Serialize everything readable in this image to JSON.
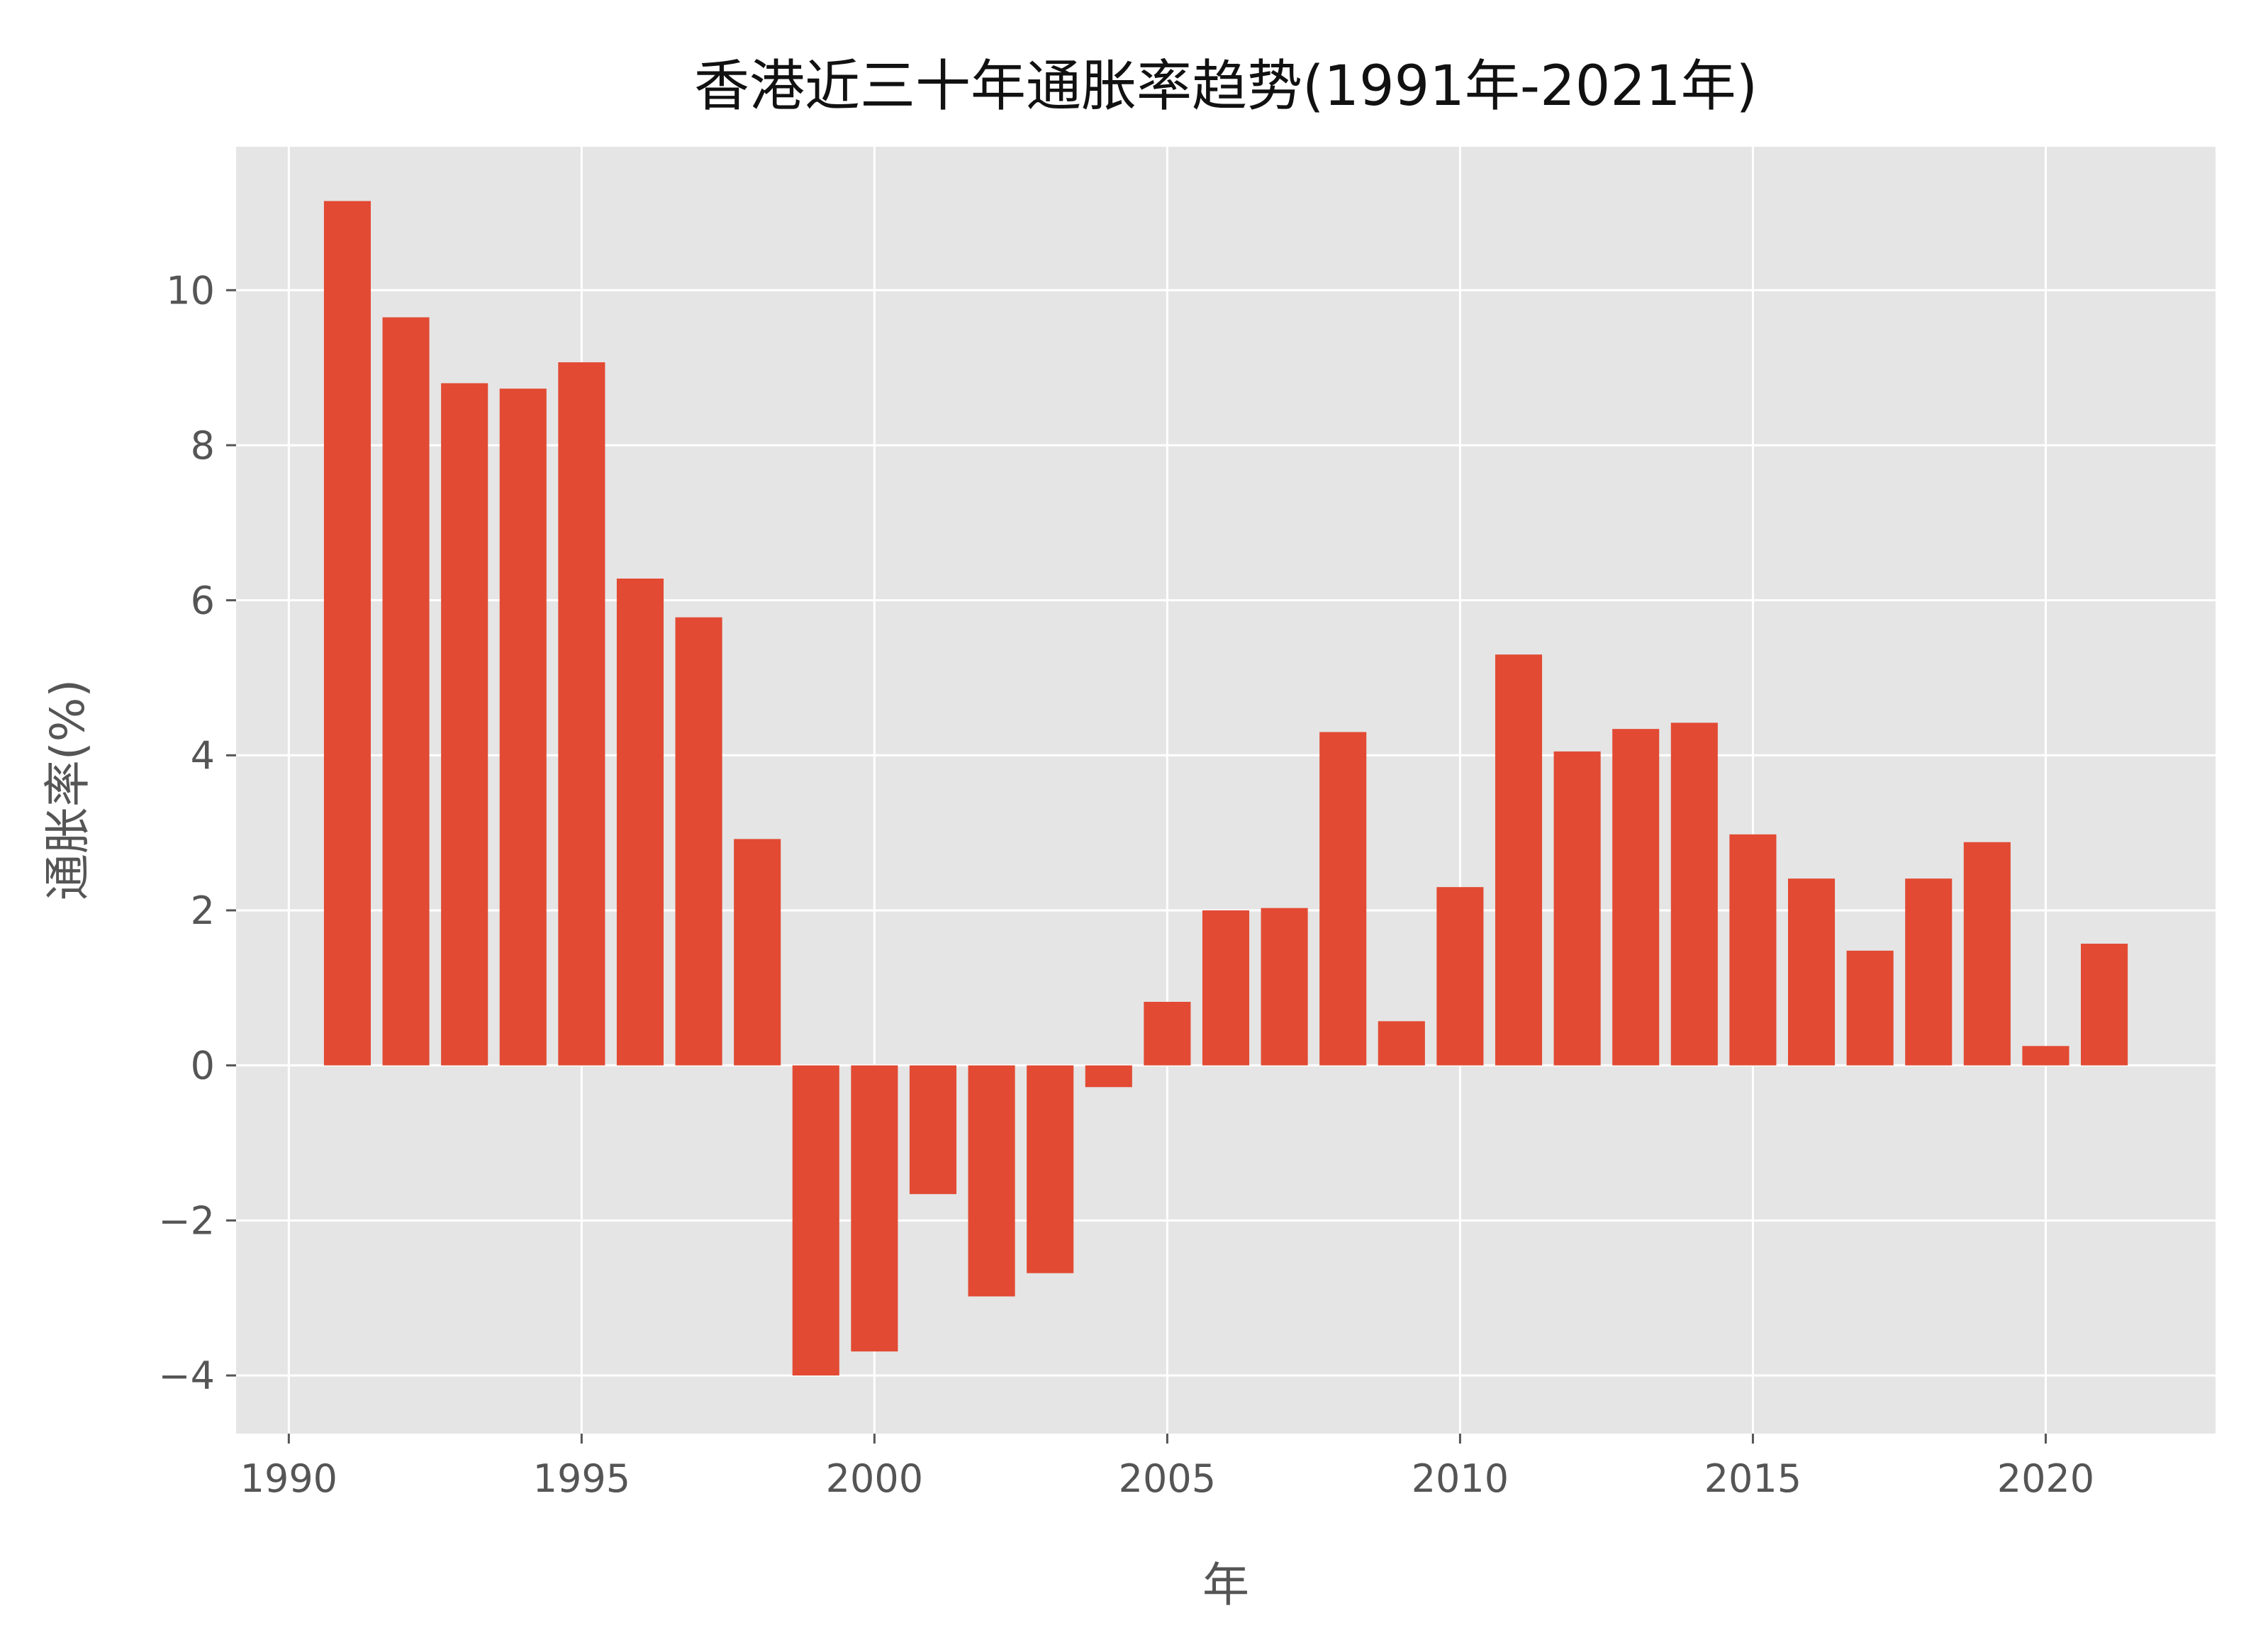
{
  "chart_data": {
    "type": "bar",
    "title": "香港近三十年通胀率趋势(1991年-2021年)",
    "xlabel": "年",
    "ylabel": "通胀率(%)",
    "x": [
      1991,
      1992,
      1993,
      1994,
      1995,
      1996,
      1997,
      1998,
      1999,
      2000,
      2001,
      2002,
      2003,
      2004,
      2005,
      2006,
      2007,
      2008,
      2009,
      2010,
      2011,
      2012,
      2013,
      2014,
      2015,
      2016,
      2017,
      2018,
      2019,
      2020,
      2021
    ],
    "values": [
      11.15,
      9.65,
      8.8,
      8.73,
      9.07,
      6.28,
      5.78,
      2.92,
      -4.0,
      -3.69,
      -1.66,
      -2.98,
      -2.68,
      -0.28,
      0.82,
      2.0,
      2.03,
      4.3,
      0.57,
      2.3,
      5.3,
      4.05,
      4.34,
      4.42,
      2.98,
      2.41,
      1.48,
      2.41,
      2.88,
      0.25,
      1.57
    ],
    "xlim": [
      1989.1,
      2022.9
    ],
    "ylim": [
      -4.75,
      11.85
    ],
    "xticks": [
      1990,
      1995,
      2000,
      2005,
      2010,
      2015,
      2020
    ],
    "xtick_labels": [
      "1990",
      "1995",
      "2000",
      "2005",
      "2010",
      "2015",
      "2020"
    ],
    "yticks": [
      -4,
      -2,
      0,
      2,
      4,
      6,
      8,
      10
    ],
    "ytick_labels": [
      "−4",
      "−2",
      "0",
      "2",
      "4",
      "6",
      "8",
      "10"
    ],
    "bar_width": 0.8,
    "grid": true,
    "colors": {
      "bar": "#E24A33",
      "plot_background": "#E5E5E5",
      "grid": "#FFFFFF",
      "tick": "#555555",
      "title": "#111111",
      "axis_label": "#555555"
    }
  }
}
